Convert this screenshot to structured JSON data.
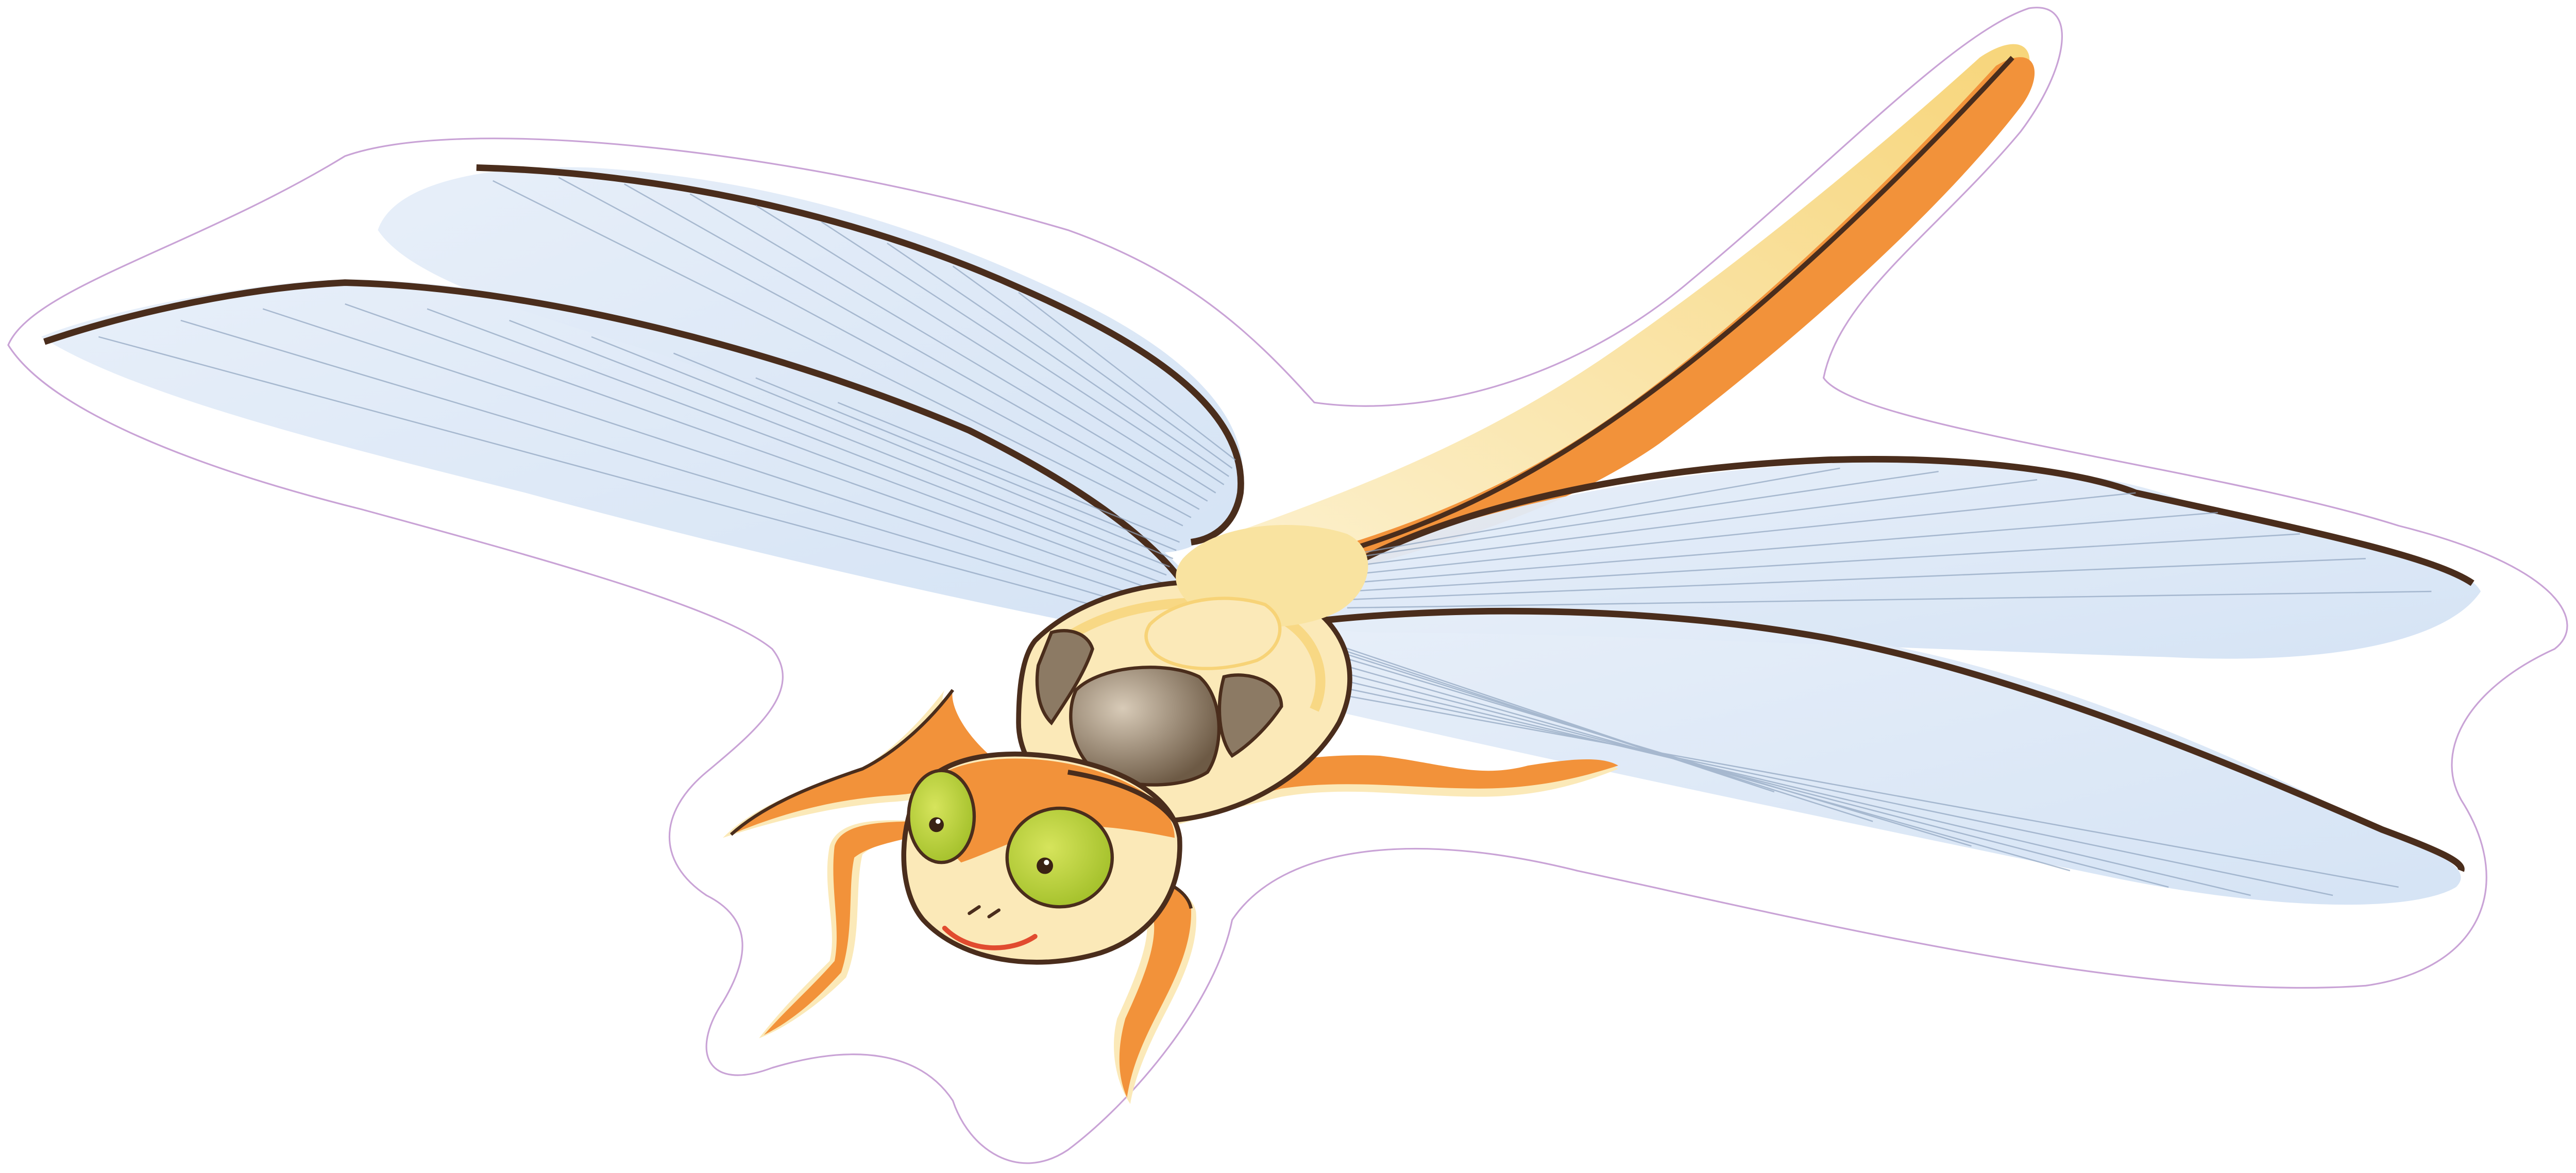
{
  "illustration": {
    "subject": "dragonfly",
    "icon": "dragonfly-icon",
    "colors": {
      "background": "#ffffff",
      "sticker_border": "#c9a3d6",
      "wing_fill": "#dde8f6",
      "wing_highlight": "#cfdef2",
      "wing_vein": "#8fa4bf",
      "outline": "#4a2d1c",
      "body_orange": "#f2923a",
      "body_cream": "#fbe9b8",
      "body_yellow": "#f7d377",
      "thorax_spot": "#8c7a64",
      "eye_green": "#b6cf33",
      "mouth_red": "#e14b2f"
    }
  }
}
